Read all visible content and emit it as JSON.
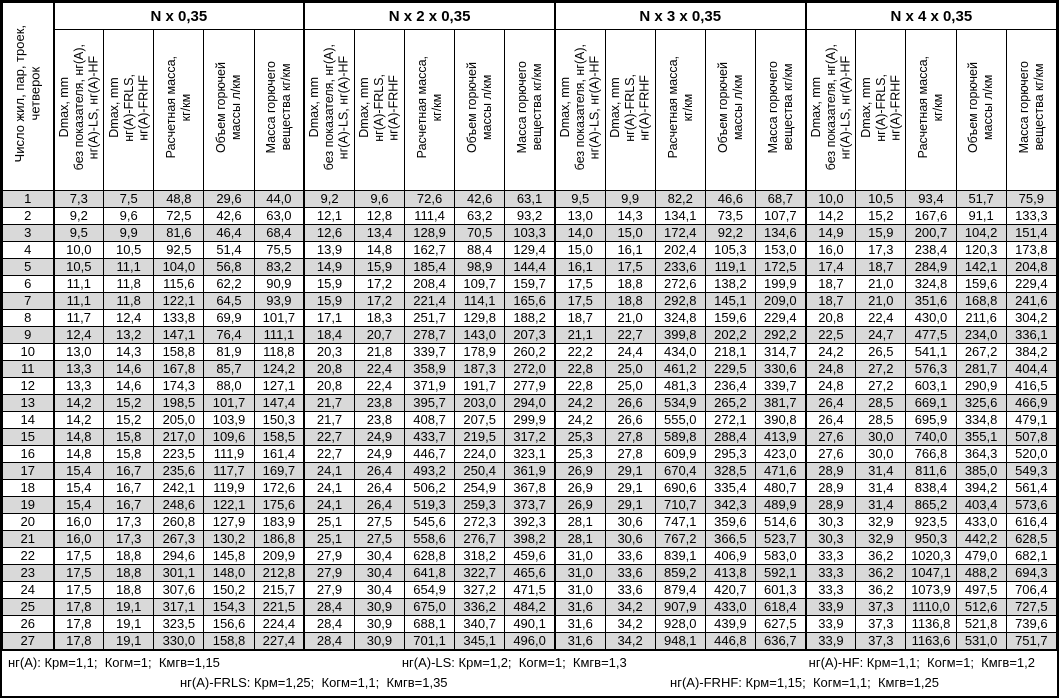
{
  "table": {
    "corner_header": "Число жил, пар, троек,\nчетверок",
    "groups": [
      {
        "title": "N x 0,35"
      },
      {
        "title": "N x 2 x 0,35"
      },
      {
        "title": "N x 3 x 0,35"
      },
      {
        "title": "N x 4 x 0,35"
      }
    ],
    "subheaders": [
      "Dmax, mm\nбез показателя, нг(А),\nнг(А)-LS, нг(А)-HF",
      "Dmax, mm\nнг(А)-FRLS,\nнг(А)-FRHF",
      "Расчетная масса,\nкг/км",
      "Объем горючей\nмассы л/км",
      "Масса горючего\nвещества кг/км"
    ],
    "rows": [
      [
        "1",
        "7,3",
        "7,5",
        "48,8",
        "29,6",
        "44,0",
        "9,2",
        "9,6",
        "72,6",
        "42,6",
        "63,1",
        "9,5",
        "9,9",
        "82,2",
        "46,6",
        "68,7",
        "10,0",
        "10,5",
        "93,4",
        "51,7",
        "75,9"
      ],
      [
        "2",
        "9,2",
        "9,6",
        "72,5",
        "42,6",
        "63,0",
        "12,1",
        "12,8",
        "111,4",
        "63,2",
        "93,2",
        "13,0",
        "14,3",
        "134,1",
        "73,5",
        "107,7",
        "14,2",
        "15,2",
        "167,6",
        "91,1",
        "133,3"
      ],
      [
        "3",
        "9,5",
        "9,9",
        "81,6",
        "46,4",
        "68,4",
        "12,6",
        "13,4",
        "128,9",
        "70,5",
        "103,3",
        "14,0",
        "15,0",
        "172,4",
        "92,2",
        "134,6",
        "14,9",
        "15,9",
        "200,7",
        "104,2",
        "151,4"
      ],
      [
        "4",
        "10,0",
        "10,5",
        "92,5",
        "51,4",
        "75,5",
        "13,9",
        "14,8",
        "162,7",
        "88,4",
        "129,4",
        "15,0",
        "16,1",
        "202,4",
        "105,3",
        "153,0",
        "16,0",
        "17,3",
        "238,4",
        "120,3",
        "173,8"
      ],
      [
        "5",
        "10,5",
        "11,1",
        "104,0",
        "56,8",
        "83,2",
        "14,9",
        "15,9",
        "185,4",
        "98,9",
        "144,4",
        "16,1",
        "17,5",
        "233,6",
        "119,1",
        "172,5",
        "17,4",
        "18,7",
        "284,9",
        "142,1",
        "204,8"
      ],
      [
        "6",
        "11,1",
        "11,8",
        "115,6",
        "62,2",
        "90,9",
        "15,9",
        "17,2",
        "208,4",
        "109,7",
        "159,7",
        "17,5",
        "18,8",
        "272,6",
        "138,2",
        "199,9",
        "18,7",
        "21,0",
        "324,8",
        "159,6",
        "229,4"
      ],
      [
        "7",
        "11,1",
        "11,8",
        "122,1",
        "64,5",
        "93,9",
        "15,9",
        "17,2",
        "221,4",
        "114,1",
        "165,6",
        "17,5",
        "18,8",
        "292,8",
        "145,1",
        "209,0",
        "18,7",
        "21,0",
        "351,6",
        "168,8",
        "241,6"
      ],
      [
        "8",
        "11,7",
        "12,4",
        "133,8",
        "69,9",
        "101,7",
        "17,1",
        "18,3",
        "251,7",
        "129,8",
        "188,2",
        "18,7",
        "21,0",
        "324,8",
        "159,6",
        "229,4",
        "20,8",
        "22,4",
        "430,0",
        "211,6",
        "304,2"
      ],
      [
        "9",
        "12,4",
        "13,2",
        "147,1",
        "76,4",
        "111,1",
        "18,4",
        "20,7",
        "278,7",
        "143,0",
        "207,3",
        "21,1",
        "22,7",
        "399,8",
        "202,2",
        "292,2",
        "22,5",
        "24,7",
        "477,5",
        "234,0",
        "336,1"
      ],
      [
        "10",
        "13,0",
        "14,3",
        "158,8",
        "81,9",
        "118,8",
        "20,3",
        "21,8",
        "339,7",
        "178,9",
        "260,2",
        "22,2",
        "24,4",
        "434,0",
        "218,1",
        "314,7",
        "24,2",
        "26,5",
        "541,1",
        "267,2",
        "384,2"
      ],
      [
        "11",
        "13,3",
        "14,6",
        "167,8",
        "85,7",
        "124,2",
        "20,8",
        "22,4",
        "358,9",
        "187,3",
        "272,0",
        "22,8",
        "25,0",
        "461,2",
        "229,5",
        "330,6",
        "24,8",
        "27,2",
        "576,3",
        "281,7",
        "404,4"
      ],
      [
        "12",
        "13,3",
        "14,6",
        "174,3",
        "88,0",
        "127,1",
        "20,8",
        "22,4",
        "371,9",
        "191,7",
        "277,9",
        "22,8",
        "25,0",
        "481,3",
        "236,4",
        "339,7",
        "24,8",
        "27,2",
        "603,1",
        "290,9",
        "416,5"
      ],
      [
        "13",
        "14,2",
        "15,2",
        "198,5",
        "101,7",
        "147,4",
        "21,7",
        "23,8",
        "395,7",
        "203,0",
        "294,0",
        "24,2",
        "26,6",
        "534,9",
        "265,2",
        "381,7",
        "26,4",
        "28,5",
        "669,1",
        "325,6",
        "466,9"
      ],
      [
        "14",
        "14,2",
        "15,2",
        "205,0",
        "103,9",
        "150,3",
        "21,7",
        "23,8",
        "408,7",
        "207,5",
        "299,9",
        "24,2",
        "26,6",
        "555,0",
        "272,1",
        "390,8",
        "26,4",
        "28,5",
        "695,9",
        "334,8",
        "479,1"
      ],
      [
        "15",
        "14,8",
        "15,8",
        "217,0",
        "109,6",
        "158,5",
        "22,7",
        "24,9",
        "433,7",
        "219,5",
        "317,2",
        "25,3",
        "27,8",
        "589,8",
        "288,4",
        "413,9",
        "27,6",
        "30,0",
        "740,0",
        "355,1",
        "507,8"
      ],
      [
        "16",
        "14,8",
        "15,8",
        "223,5",
        "111,9",
        "161,4",
        "22,7",
        "24,9",
        "446,7",
        "224,0",
        "323,1",
        "25,3",
        "27,8",
        "609,9",
        "295,3",
        "423,0",
        "27,6",
        "30,0",
        "766,8",
        "364,3",
        "520,0"
      ],
      [
        "17",
        "15,4",
        "16,7",
        "235,6",
        "117,7",
        "169,7",
        "24,1",
        "26,4",
        "493,2",
        "250,4",
        "361,9",
        "26,9",
        "29,1",
        "670,4",
        "328,5",
        "471,6",
        "28,9",
        "31,4",
        "811,6",
        "385,0",
        "549,3"
      ],
      [
        "18",
        "15,4",
        "16,7",
        "242,1",
        "119,9",
        "172,6",
        "24,1",
        "26,4",
        "506,2",
        "254,9",
        "367,8",
        "26,9",
        "29,1",
        "690,6",
        "335,4",
        "480,7",
        "28,9",
        "31,4",
        "838,4",
        "394,2",
        "561,4"
      ],
      [
        "19",
        "15,4",
        "16,7",
        "248,6",
        "122,1",
        "175,6",
        "24,1",
        "26,4",
        "519,3",
        "259,3",
        "373,7",
        "26,9",
        "29,1",
        "710,7",
        "342,3",
        "489,9",
        "28,9",
        "31,4",
        "865,2",
        "403,4",
        "573,6"
      ],
      [
        "20",
        "16,0",
        "17,3",
        "260,8",
        "127,9",
        "183,9",
        "25,1",
        "27,5",
        "545,6",
        "272,3",
        "392,3",
        "28,1",
        "30,6",
        "747,1",
        "359,6",
        "514,6",
        "30,3",
        "32,9",
        "923,5",
        "433,0",
        "616,4"
      ],
      [
        "21",
        "16,0",
        "17,3",
        "267,3",
        "130,2",
        "186,8",
        "25,1",
        "27,5",
        "558,6",
        "276,7",
        "398,2",
        "28,1",
        "30,6",
        "767,2",
        "366,5",
        "523,7",
        "30,3",
        "32,9",
        "950,3",
        "442,2",
        "628,5"
      ],
      [
        "22",
        "17,5",
        "18,8",
        "294,6",
        "145,8",
        "209,9",
        "27,9",
        "30,4",
        "628,8",
        "318,2",
        "459,6",
        "31,0",
        "33,6",
        "839,1",
        "406,9",
        "583,0",
        "33,3",
        "36,2",
        "1020,3",
        "479,0",
        "682,1"
      ],
      [
        "23",
        "17,5",
        "18,8",
        "301,1",
        "148,0",
        "212,8",
        "27,9",
        "30,4",
        "641,8",
        "322,7",
        "465,6",
        "31,0",
        "33,6",
        "859,2",
        "413,8",
        "592,1",
        "33,3",
        "36,2",
        "1047,1",
        "488,2",
        "694,3"
      ],
      [
        "24",
        "17,5",
        "18,8",
        "307,6",
        "150,2",
        "215,7",
        "27,9",
        "30,4",
        "654,9",
        "327,2",
        "471,5",
        "31,0",
        "33,6",
        "879,4",
        "420,7",
        "601,3",
        "33,3",
        "36,2",
        "1073,9",
        "497,5",
        "706,4"
      ],
      [
        "25",
        "17,8",
        "19,1",
        "317,1",
        "154,3",
        "221,5",
        "28,4",
        "30,9",
        "675,0",
        "336,2",
        "484,2",
        "31,6",
        "34,2",
        "907,9",
        "433,0",
        "618,4",
        "33,9",
        "37,3",
        "1110,0",
        "512,6",
        "727,5"
      ],
      [
        "26",
        "17,8",
        "19,1",
        "323,5",
        "156,6",
        "224,4",
        "28,4",
        "30,9",
        "688,1",
        "340,7",
        "490,1",
        "31,6",
        "34,2",
        "928,0",
        "439,9",
        "627,5",
        "33,9",
        "37,3",
        "1136,8",
        "521,8",
        "739,6"
      ],
      [
        "27",
        "17,8",
        "19,1",
        "330,0",
        "158,8",
        "227,4",
        "28,4",
        "30,9",
        "701,1",
        "345,1",
        "496,0",
        "31,6",
        "34,2",
        "948,1",
        "446,8",
        "636,7",
        "33,9",
        "37,3",
        "1163,6",
        "531,0",
        "751,7"
      ]
    ]
  },
  "footer": {
    "line1": [
      "нг(А): Крм=1,1;  Когм=1;  Кмгв=1,15",
      "нг(А)-LS: Крм=1,2;  Когм=1;  Кмгв=1,3",
      "нг(А)-HF: Крм=1,1;  Когм=1;  Кмгв=1,2"
    ],
    "line2": [
      "нг(А)-FRLS: Крм=1,25;  Когм=1,1;  Кмгв=1,35",
      "нг(А)-FRHF: Крм=1,15;  Когм=1,1;  Кмгв=1,25"
    ]
  },
  "colors": {
    "row_shade": "#d9d9d9",
    "border": "#000000",
    "text": "#000000",
    "background": "#ffffff"
  }
}
